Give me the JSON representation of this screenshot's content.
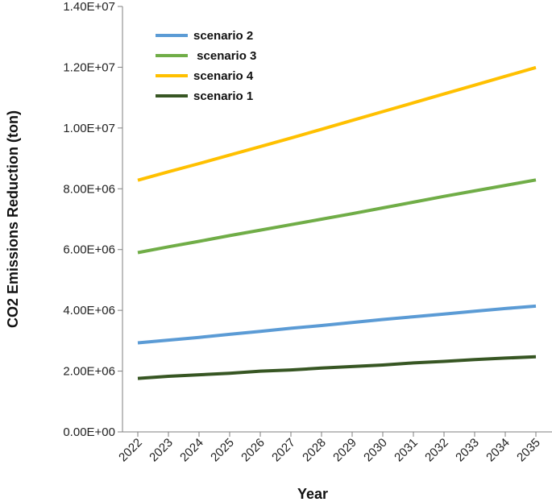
{
  "chart_data": {
    "type": "line",
    "title": "",
    "xlabel": "Year",
    "ylabel": "CO2 Emissions Reduction  (ton)",
    "x": [
      "2022",
      "2023",
      "2024",
      "2025",
      "2026",
      "2027",
      "2028",
      "2029",
      "2030",
      "2031",
      "2032",
      "2033",
      "2034",
      "2035"
    ],
    "ylim": [
      0,
      14000000
    ],
    "yticks": [
      0,
      2000000,
      4000000,
      6000000,
      8000000,
      10000000,
      12000000,
      14000000
    ],
    "ytick_labels": [
      "0.00E+00",
      "2.00E+06",
      "4.00E+06",
      "6.00E+06",
      "8.00E+06",
      "1.00E+07",
      "1.20E+07",
      "1.40E+07"
    ],
    "grid": false,
    "legend_position": "top-left",
    "series": [
      {
        "name": "scenario 2",
        "color": "#5b9bd5",
        "values": [
          2930000,
          3020000,
          3110000,
          3210000,
          3310000,
          3410000,
          3500000,
          3600000,
          3700000,
          3790000,
          3880000,
          3970000,
          4060000,
          4140000
        ]
      },
      {
        "name": " scenario 3",
        "color": "#70ad47",
        "values": [
          5900000,
          6090000,
          6270000,
          6460000,
          6640000,
          6820000,
          7000000,
          7180000,
          7370000,
          7560000,
          7750000,
          7930000,
          8110000,
          8290000
        ]
      },
      {
        "name": "scenario 4",
        "color": "#ffc000",
        "values": [
          8280000,
          8560000,
          8830000,
          9110000,
          9390000,
          9670000,
          9960000,
          10250000,
          10540000,
          10830000,
          11120000,
          11410000,
          11700000,
          11990000
        ]
      },
      {
        "name": "scenario 1",
        "color": "#375623",
        "values": [
          1760000,
          1830000,
          1880000,
          1930000,
          2000000,
          2040000,
          2100000,
          2150000,
          2200000,
          2270000,
          2320000,
          2380000,
          2430000,
          2470000
        ]
      }
    ]
  }
}
